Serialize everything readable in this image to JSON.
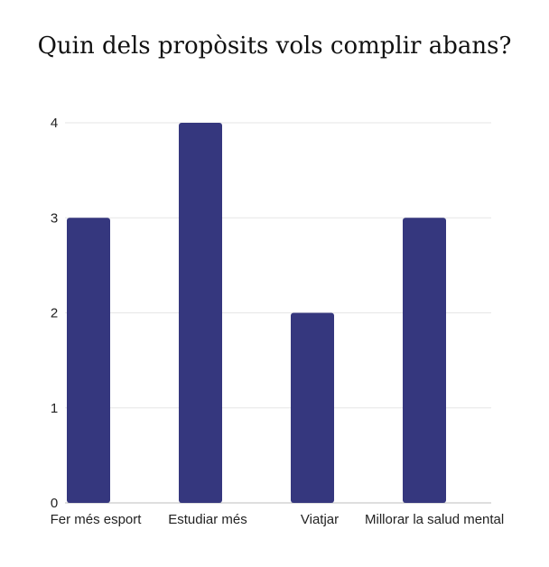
{
  "chart_data": {
    "type": "bar",
    "title": "Quin dels propòsits vols complir abans?",
    "categories": [
      "Fer més esport",
      "Estudiar més",
      "Viatjar",
      "Millorar la salud mental"
    ],
    "values": [
      3,
      4,
      2,
      3
    ],
    "ylim": [
      0,
      4
    ],
    "yticks": [
      0,
      1,
      2,
      3,
      4
    ],
    "grid": true,
    "bar_color": "#35377e",
    "xlabel": "",
    "ylabel": ""
  }
}
